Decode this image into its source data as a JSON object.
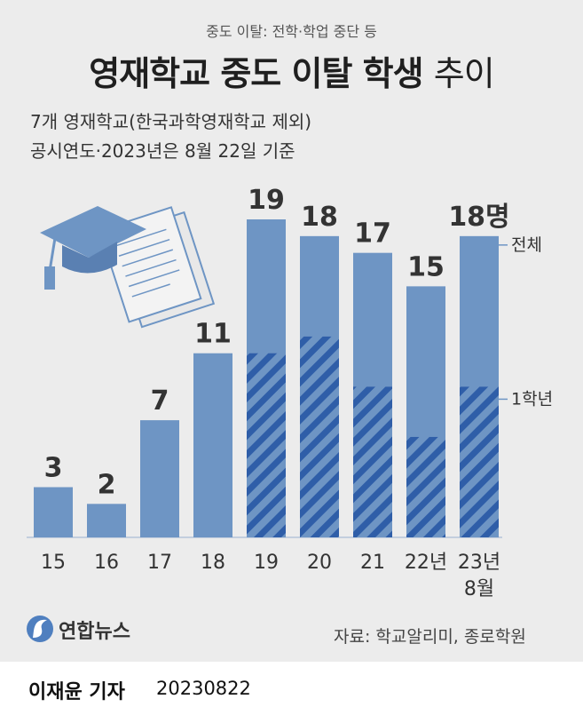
{
  "header": {
    "subtitle": "중도 이탈: 전학·학업 중단 등",
    "title_main": "영재학교 중도 이탈 학생",
    "title_suffix": "추이",
    "note_line1": "7개 영재학교(한국과학영재학교 제외)",
    "note_line2": "공시연도·2023년은 8월 22일 기준"
  },
  "chart_data": {
    "type": "bar",
    "categories": [
      "15",
      "16",
      "17",
      "18",
      "19",
      "20",
      "21",
      "22년",
      "23년\n8월"
    ],
    "ylim": [
      0,
      20
    ],
    "grid": false,
    "unit": "명",
    "series": [
      {
        "name": "전체",
        "values": [
          3,
          2,
          7,
          11,
          19,
          18,
          17,
          15,
          18
        ],
        "color": "#6e95c4"
      },
      {
        "name": "1학년",
        "values": [
          null,
          null,
          null,
          null,
          11,
          12,
          9,
          6,
          9
        ],
        "color": "#2f5ea8",
        "pattern": "diagonal-stripes"
      }
    ],
    "value_labels": [
      "3",
      "2",
      "7",
      "11",
      "19",
      "18",
      "17",
      "15",
      "18명"
    ],
    "legend_placement": "right, next to last bar"
  },
  "footer": {
    "logo_text": "연합뉴스",
    "source": "자료: 학교알리미, 종로학원",
    "byline": "이재윤 기자",
    "date": "20230822"
  },
  "colors": {
    "background": "#ececec",
    "bar": "#6e95c4",
    "stripe": "#2f5ea8",
    "text": "#222222"
  }
}
